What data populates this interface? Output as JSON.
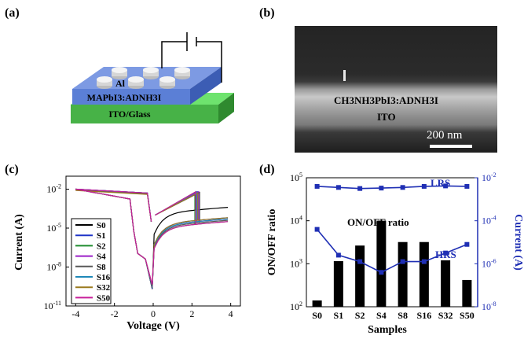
{
  "panels": {
    "a": "(a)",
    "b": "(b)",
    "c": "(c)",
    "d": "(d)"
  },
  "device": {
    "electrode": "Al",
    "active_layer": "MAPbI3:ADNH3I",
    "substrate": "ITO/Glass",
    "colors": {
      "substrate": "#4fc64f",
      "active": "#5b7fd6",
      "electrode": "#e6e6e6"
    }
  },
  "sem": {
    "layer": "CH3NH3PbI3:ADNH3I",
    "bottom": "ITO",
    "scale_bar": "200 nm"
  },
  "chart_data": [
    {
      "panel": "c",
      "type": "line",
      "xlabel": "Voltage (V)",
      "ylabel": "Current (A)",
      "xlim": [
        -4.5,
        4.5
      ],
      "ylim_log10": [
        -11,
        -1
      ],
      "x_ticks": [
        -4,
        -2,
        0,
        2,
        4
      ],
      "y_tick_labels": [
        "10",
        "10",
        "10",
        "10"
      ],
      "y_tick_exponents": [
        "-2",
        "-5",
        "-8",
        "-11"
      ],
      "legend": {
        "position": "bottom-left",
        "entries": [
          {
            "name": "S0",
            "color": "#000000"
          },
          {
            "name": "S1",
            "color": "#1f33c8"
          },
          {
            "name": "S2",
            "color": "#1e8c2e"
          },
          {
            "name": "S4",
            "color": "#9a1ec8"
          },
          {
            "name": "S8",
            "color": "#585858"
          },
          {
            "name": "S16",
            "color": "#1e88b8"
          },
          {
            "name": "S32",
            "color": "#9a7a1e"
          },
          {
            "name": "S50",
            "color": "#c81e9a"
          }
        ]
      }
    },
    {
      "panel": "d",
      "type": "bar",
      "categories": [
        "S0",
        "S1",
        "S2",
        "S4",
        "S8",
        "S16",
        "S32",
        "S50"
      ],
      "xlabel": "Samples",
      "ylabel": "ON/OFF ratio",
      "ylabel_right": "Current (A)",
      "ylim": [
        100,
        100000
      ],
      "ylim_right_log10": [
        -8,
        -2
      ],
      "y_tick_labels": [
        "10",
        "10",
        "10",
        "10"
      ],
      "y_tick_exponents": [
        "2",
        "3",
        "4",
        "5"
      ],
      "y_right_tick_labels": [
        "10",
        "10",
        "10",
        "10"
      ],
      "y_right_tick_exponents": [
        "-2",
        "-4",
        "-6",
        "-8"
      ],
      "series": [
        {
          "name": "ON/OFF ratio",
          "kind": "bar",
          "color": "#000000",
          "values": [
            140,
            1150,
            2650,
            10000,
            3200,
            3200,
            1200,
            420
          ]
        },
        {
          "name": "LRS",
          "kind": "line",
          "color": "#1f2fb4",
          "values_log10": [
            -2.4,
            -2.45,
            -2.5,
            -2.48,
            -2.45,
            -2.4,
            -2.38,
            -2.4
          ]
        },
        {
          "name": "HRS",
          "kind": "line",
          "color": "#1f2fb4",
          "values_log10": [
            -4.4,
            -5.6,
            -5.9,
            -6.4,
            -5.9,
            -5.9,
            -5.5,
            -5.1
          ]
        }
      ],
      "annotations": [
        "LRS",
        "ON/OFF ratio",
        "HRS"
      ]
    }
  ]
}
